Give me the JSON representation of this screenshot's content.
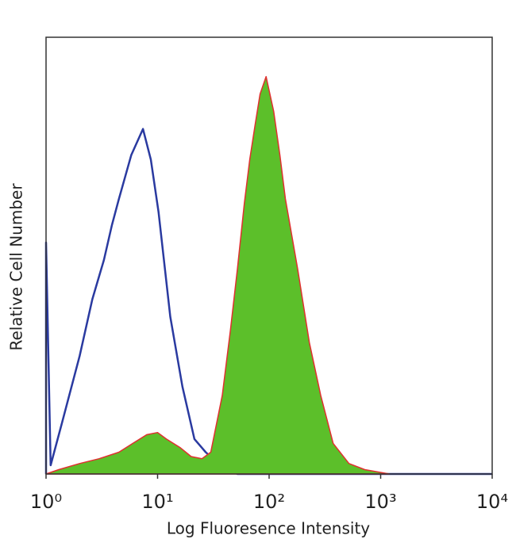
{
  "chart_data": {
    "type": "line",
    "xlabel": "Log Fluoresence Intensity",
    "ylabel": "Relative Cell Number",
    "xscale": "log",
    "xlim": [
      1,
      10000
    ],
    "xticks": [
      {
        "value": 1,
        "label": "10⁰"
      },
      {
        "value": 10,
        "label": "10¹"
      },
      {
        "value": 100,
        "label": "10²"
      },
      {
        "value": 1000,
        "label": "10³"
      },
      {
        "value": 10000,
        "label": "10⁴"
      }
    ],
    "ylim": [
      0,
      100
    ],
    "series": [
      {
        "color": "#2a3aa0",
        "fill": null,
        "x": [
          1,
          1,
          1.1,
          1.4,
          2,
          2.6,
          3.3,
          3.9,
          4.5,
          5.8,
          7.4,
          8.7,
          10.2,
          13,
          16.7,
          21.4,
          27,
          38,
          52,
          10000
        ],
        "values": [
          0,
          53,
          2,
          12,
          27,
          40,
          49,
          57,
          63,
          73,
          79,
          72,
          60,
          36,
          20,
          8,
          5,
          1.5,
          0,
          0
        ]
      },
      {
        "color": "#e03030",
        "fill": "#5cbf2a",
        "x": [
          1,
          1.3,
          2,
          3,
          4.5,
          6,
          8,
          10,
          12,
          16,
          20,
          25,
          30,
          38,
          45,
          52,
          60,
          67,
          75,
          83,
          94,
          110,
          125,
          140,
          180,
          230,
          290,
          375,
          520,
          720,
          1200
        ],
        "values": [
          0,
          1,
          2.4,
          3.5,
          5,
          7,
          9,
          9.5,
          8,
          6,
          4,
          3.5,
          5,
          18,
          33,
          47,
          62,
          72,
          80,
          87,
          91,
          83,
          73,
          63,
          47,
          30,
          18,
          7,
          2.4,
          1,
          0
        ]
      }
    ]
  }
}
